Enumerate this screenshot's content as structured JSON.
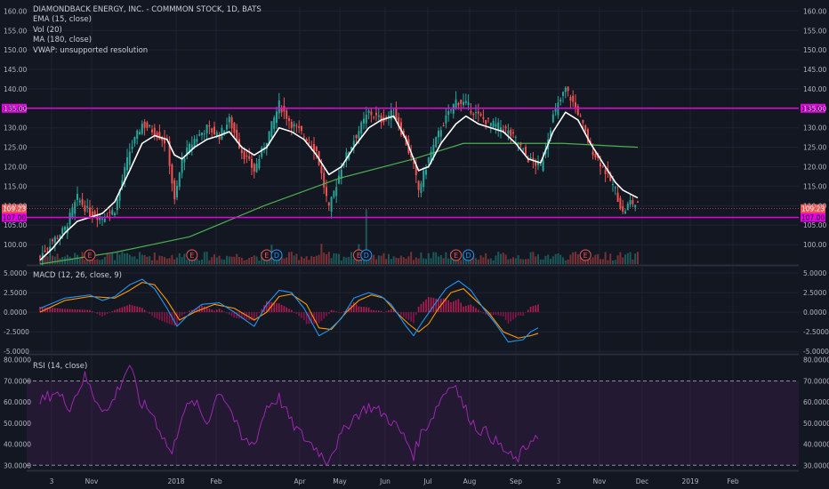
{
  "legend": {
    "title": "DIAMONDBACK ENERGY, INC. - COMMMON STOCK, 1D, BATS",
    "ema": "EMA (15, close)",
    "vol": "Vol (20)",
    "ma": "MA (180, close)",
    "vwap": "VWAP: unsupported resolution"
  },
  "macd_label": "MACD (12, 26, close, 9)",
  "rsi_label": "RSI (14, close)",
  "colors": {
    "background": "#131722",
    "up": "#26a69a",
    "down": "#ef5350",
    "ema": "#ffffff",
    "ma": "#4caf50",
    "level": "#e600e6",
    "macd": "#2196f3",
    "signal": "#ff9800",
    "rsi": "#9c27b0"
  },
  "chart_data": {
    "type": "candlestick",
    "x_tick_labels": [
      "3",
      "Nov",
      "2018",
      "Feb",
      "Apr",
      "May",
      "Jun",
      "Jul",
      "Aug",
      "Sep",
      "3",
      "Nov",
      "Dec",
      "2019",
      "Feb"
    ],
    "price_axis": {
      "ticks": [
        "160.00",
        "155.00",
        "150.00",
        "145.00",
        "140.00",
        "135.00",
        "130.00",
        "125.00",
        "120.00",
        "115.00",
        "110.00",
        "105.00",
        "100.00"
      ],
      "range": [
        95,
        161
      ]
    },
    "price_path": [
      [
        0,
        97
      ],
      [
        5,
        101
      ],
      [
        10,
        104
      ],
      [
        15,
        112
      ],
      [
        20,
        108
      ],
      [
        25,
        107
      ],
      [
        30,
        109
      ],
      [
        36,
        124
      ],
      [
        41,
        131
      ],
      [
        46,
        129
      ],
      [
        51,
        126
      ],
      [
        54,
        111
      ],
      [
        57,
        122
      ],
      [
        62,
        127
      ],
      [
        67,
        130
      ],
      [
        72,
        128
      ],
      [
        76,
        132
      ],
      [
        81,
        124
      ],
      [
        86,
        119
      ],
      [
        91,
        127
      ],
      [
        96,
        136
      ],
      [
        101,
        131
      ],
      [
        106,
        128
      ],
      [
        111,
        124
      ],
      [
        116,
        109
      ],
      [
        121,
        120
      ],
      [
        126,
        127
      ],
      [
        132,
        134
      ],
      [
        137,
        132
      ],
      [
        142,
        134
      ],
      [
        147,
        126
      ],
      [
        150,
        120
      ],
      [
        152,
        114
      ],
      [
        156,
        122
      ],
      [
        161,
        130
      ],
      [
        167,
        137
      ],
      [
        171,
        136
      ],
      [
        176,
        133
      ],
      [
        181,
        131
      ],
      [
        186,
        130
      ],
      [
        191,
        127
      ],
      [
        196,
        122
      ],
      [
        201,
        120
      ],
      [
        206,
        133
      ],
      [
        211,
        140
      ],
      [
        216,
        134
      ],
      [
        221,
        125
      ],
      [
        226,
        120
      ],
      [
        231,
        114
      ],
      [
        234,
        108
      ],
      [
        237,
        111
      ],
      [
        240,
        110
      ]
    ],
    "ema_path": [
      [
        0,
        96
      ],
      [
        5,
        99
      ],
      [
        10,
        103
      ],
      [
        15,
        106
      ],
      [
        20,
        107
      ],
      [
        25,
        108
      ],
      [
        30,
        111
      ],
      [
        36,
        119
      ],
      [
        41,
        126
      ],
      [
        46,
        128
      ],
      [
        51,
        127
      ],
      [
        54,
        123
      ],
      [
        57,
        122
      ],
      [
        62,
        125
      ],
      [
        67,
        127
      ],
      [
        72,
        128
      ],
      [
        76,
        129
      ],
      [
        81,
        125
      ],
      [
        86,
        123
      ],
      [
        91,
        125
      ],
      [
        96,
        130
      ],
      [
        101,
        129
      ],
      [
        106,
        127
      ],
      [
        111,
        123
      ],
      [
        116,
        118
      ],
      [
        121,
        120
      ],
      [
        126,
        125
      ],
      [
        132,
        130
      ],
      [
        137,
        132
      ],
      [
        142,
        133
      ],
      [
        147,
        127
      ],
      [
        150,
        122
      ],
      [
        152,
        119
      ],
      [
        156,
        120
      ],
      [
        161,
        126
      ],
      [
        167,
        131
      ],
      [
        171,
        133
      ],
      [
        176,
        131
      ],
      [
        181,
        130
      ],
      [
        186,
        129
      ],
      [
        191,
        126
      ],
      [
        196,
        122
      ],
      [
        201,
        121
      ],
      [
        206,
        129
      ],
      [
        211,
        134
      ],
      [
        216,
        132
      ],
      [
        221,
        126
      ],
      [
        226,
        121
      ],
      [
        231,
        116
      ],
      [
        234,
        114
      ],
      [
        237,
        113
      ],
      [
        240,
        112
      ]
    ],
    "ma_path": [
      [
        0,
        95
      ],
      [
        30,
        98
      ],
      [
        60,
        102
      ],
      [
        90,
        110
      ],
      [
        120,
        117
      ],
      [
        150,
        122
      ],
      [
        170,
        126
      ],
      [
        190,
        126
      ],
      [
        210,
        126
      ],
      [
        240,
        125
      ]
    ],
    "horizontal_levels": [
      {
        "label": "135.02",
        "value": 135.02
      },
      {
        "label": "107.00",
        "value": 107.0
      }
    ],
    "last_price": {
      "label": "109.23",
      "value": 109.23
    },
    "event_markers": [
      {
        "label": "E",
        "index": 20
      },
      {
        "label": "E",
        "index": 61
      },
      {
        "label": "E",
        "index": 91
      },
      {
        "label": "D",
        "index": 95
      },
      {
        "label": "E",
        "index": 128
      },
      {
        "label": "D",
        "index": 131
      },
      {
        "label": "E",
        "index": 167
      },
      {
        "label": "D",
        "index": 172
      },
      {
        "label": "E",
        "index": 219
      }
    ],
    "macd": {
      "ticks": [
        "5.0000",
        "2.5000",
        "0.0000",
        "-2.5000",
        "-5.0000"
      ],
      "range": [
        -5.2,
        5.8
      ],
      "macd_path": [
        [
          0,
          0.5
        ],
        [
          10,
          1.8
        ],
        [
          20,
          2.2
        ],
        [
          25,
          1.5
        ],
        [
          30,
          2.0
        ],
        [
          36,
          3.5
        ],
        [
          41,
          4.2
        ],
        [
          46,
          3.0
        ],
        [
          51,
          0.5
        ],
        [
          55,
          -1.8
        ],
        [
          60,
          -0.2
        ],
        [
          65,
          1.0
        ],
        [
          72,
          1.2
        ],
        [
          78,
          0.0
        ],
        [
          86,
          -1.8
        ],
        [
          91,
          1.0
        ],
        [
          96,
          2.8
        ],
        [
          101,
          2.5
        ],
        [
          106,
          0.5
        ],
        [
          112,
          -3.0
        ],
        [
          116,
          -2.3
        ],
        [
          121,
          -0.8
        ],
        [
          126,
          1.8
        ],
        [
          132,
          2.5
        ],
        [
          137,
          2.0
        ],
        [
          141,
          1.0
        ],
        [
          147,
          -1.8
        ],
        [
          150,
          -3.0
        ],
        [
          153,
          -1.5
        ],
        [
          158,
          0.8
        ],
        [
          163,
          3.0
        ],
        [
          168,
          4.0
        ],
        [
          173,
          2.8
        ],
        [
          178,
          0.5
        ],
        [
          183,
          -1.5
        ],
        [
          188,
          -3.8
        ],
        [
          194,
          -3.5
        ],
        [
          197,
          -2.5
        ],
        [
          200,
          -2.0
        ]
      ],
      "signal_path": [
        [
          0,
          0.0
        ],
        [
          10,
          1.5
        ],
        [
          20,
          2.0
        ],
        [
          30,
          1.8
        ],
        [
          36,
          2.8
        ],
        [
          41,
          3.8
        ],
        [
          46,
          3.5
        ],
        [
          51,
          1.5
        ],
        [
          56,
          -1.0
        ],
        [
          62,
          0.0
        ],
        [
          70,
          1.0
        ],
        [
          78,
          0.5
        ],
        [
          86,
          -1.0
        ],
        [
          91,
          0.0
        ],
        [
          96,
          2.0
        ],
        [
          101,
          2.3
        ],
        [
          107,
          1.0
        ],
        [
          112,
          -2.0
        ],
        [
          117,
          -2.2
        ],
        [
          123,
          0.0
        ],
        [
          128,
          1.5
        ],
        [
          133,
          2.2
        ],
        [
          138,
          1.8
        ],
        [
          143,
          0.0
        ],
        [
          148,
          -1.5
        ],
        [
          152,
          -2.5
        ],
        [
          156,
          -1.5
        ],
        [
          160,
          0.5
        ],
        [
          165,
          2.5
        ],
        [
          170,
          3.0
        ],
        [
          175,
          1.5
        ],
        [
          180,
          0.0
        ],
        [
          186,
          -2.5
        ],
        [
          192,
          -3.3
        ],
        [
          197,
          -3.0
        ],
        [
          200,
          -2.7
        ]
      ]
    },
    "rsi": {
      "ticks": [
        "80.0000",
        "70.0000",
        "60.0000",
        "50.0000",
        "40.0000",
        "30.0000"
      ],
      "range": [
        28,
        82
      ],
      "band": [
        30,
        70
      ],
      "path": [
        [
          0,
          60
        ],
        [
          6,
          65
        ],
        [
          12,
          58
        ],
        [
          18,
          72
        ],
        [
          22,
          62
        ],
        [
          27,
          55
        ],
        [
          32,
          68
        ],
        [
          36,
          78
        ],
        [
          40,
          60
        ],
        [
          45,
          55
        ],
        [
          50,
          42
        ],
        [
          53,
          35
        ],
        [
          57,
          55
        ],
        [
          62,
          60
        ],
        [
          67,
          50
        ],
        [
          72,
          66
        ],
        [
          76,
          58
        ],
        [
          81,
          42
        ],
        [
          86,
          40
        ],
        [
          91,
          58
        ],
        [
          96,
          62
        ],
        [
          101,
          50
        ],
        [
          106,
          43
        ],
        [
          111,
          38
        ],
        [
          115,
          32
        ],
        [
          120,
          42
        ],
        [
          125,
          52
        ],
        [
          132,
          58
        ],
        [
          137,
          55
        ],
        [
          142,
          50
        ],
        [
          147,
          42
        ],
        [
          150,
          35
        ],
        [
          153,
          45
        ],
        [
          157,
          52
        ],
        [
          161,
          62
        ],
        [
          166,
          70
        ],
        [
          170,
          58
        ],
        [
          175,
          48
        ],
        [
          180,
          45
        ],
        [
          184,
          40
        ],
        [
          188,
          35
        ],
        [
          191,
          32
        ],
        [
          195,
          38
        ],
        [
          198,
          44
        ],
        [
          200,
          42
        ]
      ]
    }
  }
}
